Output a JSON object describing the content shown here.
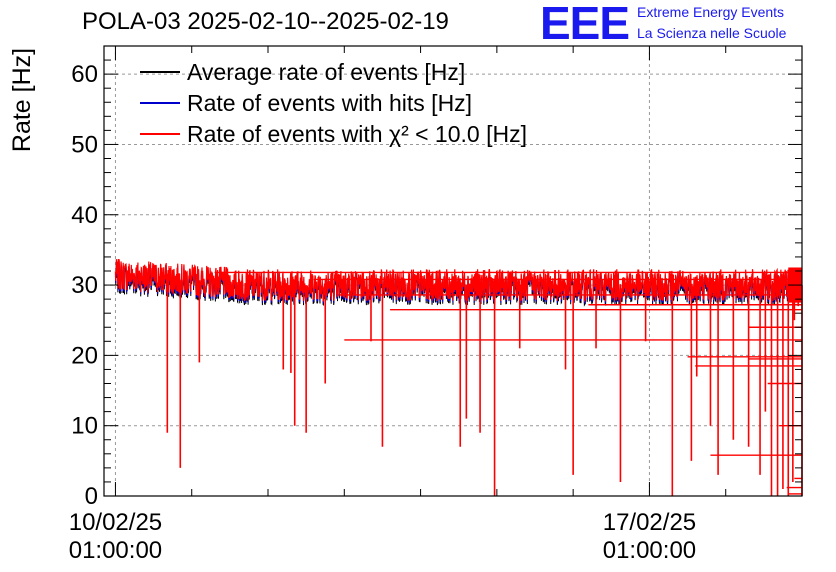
{
  "chart_data": {
    "type": "line",
    "title": "POLA-03 2025-02-10--2025-02-19",
    "ylabel": "Rate [Hz]",
    "xlabel": "",
    "ylim": [
      0,
      64
    ],
    "yticks": [
      0,
      10,
      20,
      30,
      40,
      50,
      60
    ],
    "x_range_days": [
      -0.15,
      9.0
    ],
    "xticks": [
      {
        "day": 0,
        "label_date": "10/02/25",
        "label_time": "01:00:00"
      },
      {
        "day": 7,
        "label_date": "17/02/25",
        "label_time": "01:00:00"
      }
    ],
    "grid": true,
    "legend_position": "top-left",
    "series": [
      {
        "name": "Average rate of events [Hz]",
        "color": "#000000",
        "baseline": 29.5
      },
      {
        "name": "Rate of events with hits [Hz]",
        "color": "#0000cc",
        "baseline": 29.5
      },
      {
        "name": "Rate of events with χ² < 10.0 [Hz]",
        "color": "#ff0000",
        "baseline": 29.5,
        "noise_band": [
          27,
          34
        ]
      }
    ],
    "dips": [
      {
        "day": 0.85,
        "value": 4
      },
      {
        "day": 0.68,
        "value": 9
      },
      {
        "day": 1.1,
        "value": 19
      },
      {
        "day": 2.2,
        "value": 18
      },
      {
        "day": 2.3,
        "value": 17.5
      },
      {
        "day": 2.35,
        "value": 10
      },
      {
        "day": 2.5,
        "value": 9
      },
      {
        "day": 2.75,
        "value": 16
      },
      {
        "day": 3.35,
        "value": 22
      },
      {
        "day": 3.5,
        "value": 7
      },
      {
        "day": 4.52,
        "value": 7
      },
      {
        "day": 4.6,
        "value": 11
      },
      {
        "day": 4.78,
        "value": 9
      },
      {
        "day": 4.97,
        "value": 0
      },
      {
        "day": 5.3,
        "value": 21
      },
      {
        "day": 5.9,
        "value": 18
      },
      {
        "day": 6.0,
        "value": 3
      },
      {
        "day": 6.3,
        "value": 21
      },
      {
        "day": 6.62,
        "value": 2
      },
      {
        "day": 6.95,
        "value": 22
      },
      {
        "day": 7.3,
        "value": 0
      },
      {
        "day": 7.55,
        "value": 5
      },
      {
        "day": 7.62,
        "value": 17
      },
      {
        "day": 7.8,
        "value": 10
      },
      {
        "day": 7.9,
        "value": 3
      },
      {
        "day": 8.1,
        "value": 8
      },
      {
        "day": 8.3,
        "value": 7
      },
      {
        "day": 8.45,
        "value": 3
      },
      {
        "day": 8.52,
        "value": 12
      },
      {
        "day": 8.6,
        "value": 0
      },
      {
        "day": 8.68,
        "value": 0
      },
      {
        "day": 8.75,
        "value": 1
      },
      {
        "day": 8.82,
        "value": 0
      },
      {
        "day": 8.88,
        "value": 2
      },
      {
        "day": 9.0,
        "value": 0
      },
      {
        "day": 8.9,
        "value": 25
      },
      {
        "day": 8.95,
        "value": 27
      }
    ]
  },
  "logo": {
    "mark": "EEE",
    "line1": "Extreme Energy Events",
    "line2": "La Scienza nelle Scuole"
  }
}
